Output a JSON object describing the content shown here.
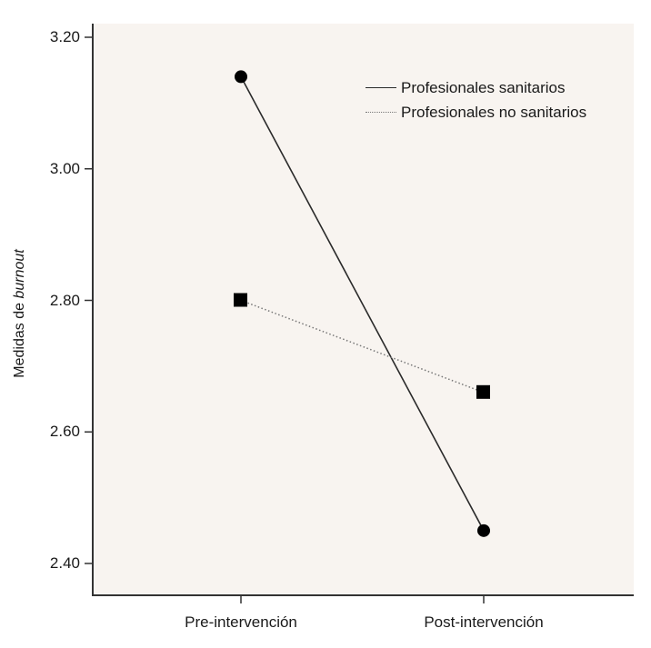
{
  "chart_data": {
    "type": "line",
    "title": "",
    "xlabel": "",
    "ylabel": "Medidas de burnout",
    "ylabel_parts": {
      "plain": "Medidas de ",
      "italic": "burnout"
    },
    "categories": [
      "Pre-intervención",
      "Post-intervención"
    ],
    "series": [
      {
        "name": "Profesionales sanitarios",
        "values": [
          3.14,
          2.45
        ],
        "line_style": "solid",
        "marker": "circle",
        "color": "#2a2a2a"
      },
      {
        "name": "Profesionales no sanitarios",
        "values": [
          2.8,
          2.66
        ],
        "line_style": "dotted",
        "marker": "square",
        "color": "#777777"
      }
    ],
    "ylim": [
      2.4,
      3.2
    ],
    "yticks": [
      "3.20",
      "3.00",
      "2.80",
      "2.60",
      "2.40"
    ],
    "grid": false,
    "legend_position": "upper right",
    "background_color": "#f8f4f0"
  }
}
